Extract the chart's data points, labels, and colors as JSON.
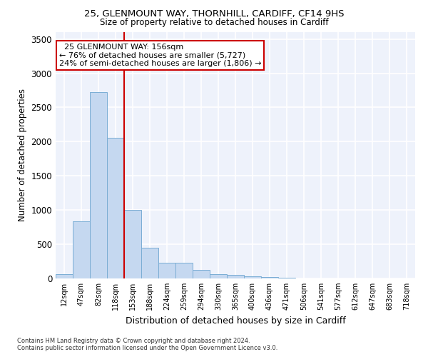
{
  "title1": "25, GLENMOUNT WAY, THORNHILL, CARDIFF, CF14 9HS",
  "title2": "Size of property relative to detached houses in Cardiff",
  "xlabel": "Distribution of detached houses by size in Cardiff",
  "ylabel": "Number of detached properties",
  "bar_labels": [
    "12sqm",
    "47sqm",
    "82sqm",
    "118sqm",
    "153sqm",
    "188sqm",
    "224sqm",
    "259sqm",
    "294sqm",
    "330sqm",
    "365sqm",
    "400sqm",
    "436sqm",
    "471sqm",
    "506sqm",
    "541sqm",
    "577sqm",
    "612sqm",
    "647sqm",
    "683sqm",
    "718sqm"
  ],
  "bar_values": [
    60,
    840,
    2720,
    2060,
    1000,
    450,
    230,
    225,
    130,
    60,
    50,
    35,
    20,
    10,
    5,
    0,
    0,
    0,
    0,
    0,
    0
  ],
  "bar_color": "#c5d8f0",
  "bar_edgecolor": "#7aadd4",
  "vline_color": "#cc0000",
  "vline_x": 3.5,
  "ylim": [
    0,
    3600
  ],
  "yticks": [
    0,
    500,
    1000,
    1500,
    2000,
    2500,
    3000,
    3500
  ],
  "annotation_text": "  25 GLENMOUNT WAY: 156sqm  \n← 76% of detached houses are smaller (5,727)\n24% of semi-detached houses are larger (1,806) →",
  "annotation_box_color": "#ffffff",
  "annotation_box_edgecolor": "#cc0000",
  "footer": "Contains HM Land Registry data © Crown copyright and database right 2024.\nContains public sector information licensed under the Open Government Licence v3.0.",
  "bg_color": "#eef2fb"
}
